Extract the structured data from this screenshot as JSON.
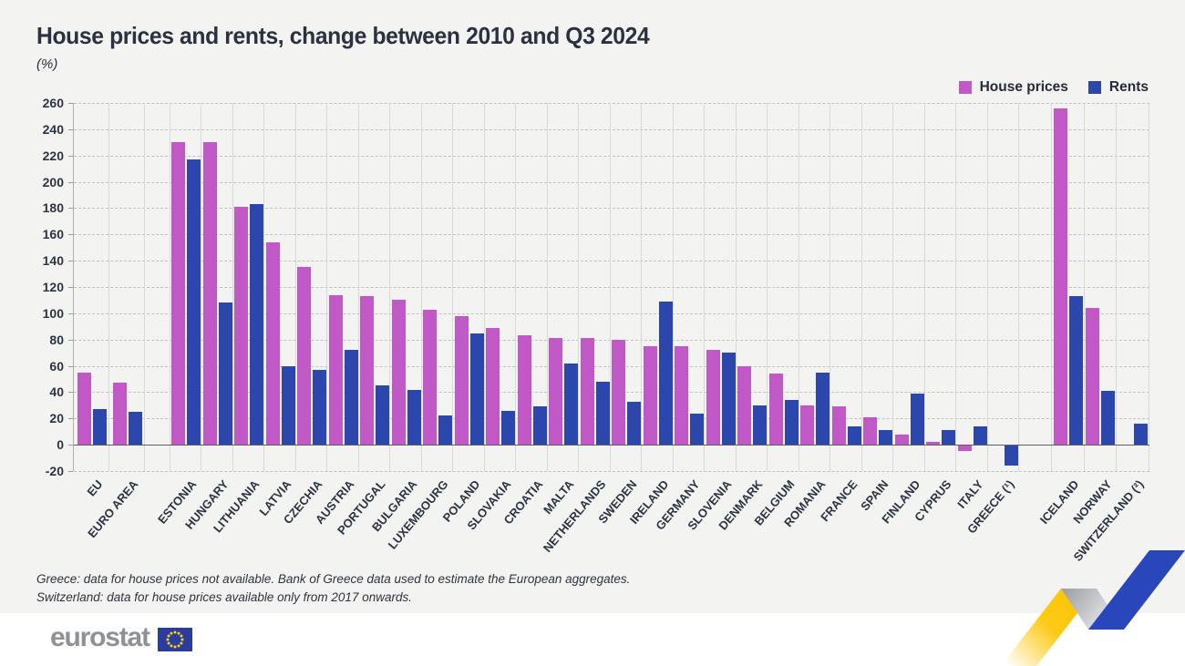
{
  "title": "House prices and rents, change between 2010 and Q3 2024",
  "subtitle": "(%)",
  "chart_data": {
    "type": "bar",
    "title": "House prices and rents, change between 2010 and Q3 2024",
    "ylabel": "(%)",
    "ylim": [
      -20,
      260
    ],
    "ytick_step": 20,
    "grid": true,
    "legend_position": "top-right",
    "categories": [
      "EU",
      "EURO AREA",
      "ESTONIA",
      "HUNGARY",
      "LITHUANIA",
      "LATVIA",
      "CZECHIA",
      "AUSTRIA",
      "PORTUGAL",
      "BULGARIA",
      "LUXEMBOURG",
      "POLAND",
      "SLOVAKIA",
      "CROATIA",
      "MALTA",
      "NETHERLANDS",
      "SWEDEN",
      "IRELAND",
      "GERMANY",
      "SLOVENIA",
      "DENMARK",
      "BELGIUM",
      "ROMANIA",
      "FRANCE",
      "SPAIN",
      "FINLAND",
      "CYPRUS",
      "ITALY",
      "GREECE (¹)",
      "ICELAND",
      "NORWAY",
      "SWITZERLAND (²)"
    ],
    "series": [
      {
        "name": "House prices",
        "color": "#c058c5",
        "values": [
          55,
          47,
          230,
          230,
          181,
          154,
          135,
          114,
          113,
          110,
          103,
          98,
          89,
          83,
          81,
          81,
          80,
          75,
          75,
          72,
          60,
          54,
          30,
          29,
          21,
          8,
          2,
          -5,
          null,
          256,
          104,
          null
        ]
      },
      {
        "name": "Rents",
        "color": "#2c47ac",
        "values": [
          27,
          25,
          217,
          108,
          183,
          60,
          57,
          72,
          45,
          42,
          22,
          85,
          26,
          29,
          62,
          48,
          33,
          109,
          24,
          70,
          30,
          34,
          55,
          14,
          11,
          39,
          11,
          14,
          -16,
          113,
          41,
          16
        ]
      }
    ],
    "section_gaps_after_indices": [
      1,
      28
    ]
  },
  "footnotes": [
    "Greece: data for house prices not available. Bank of Greece data used to estimate the European aggregates.",
    "Switzerland: data for house prices available only from 2017 onwards."
  ],
  "logo": {
    "text": "eurostat"
  },
  "colors": {
    "house_prices": "#c058c5",
    "rents": "#2c47ac",
    "axis_text": "#2c3442",
    "panel_background": "#f3f3f2",
    "ribbon_yellow": "#fcc408",
    "ribbon_blue": "#2946bb",
    "flag_blue": "#2a3c9d",
    "flag_stars": "#f7d112"
  }
}
